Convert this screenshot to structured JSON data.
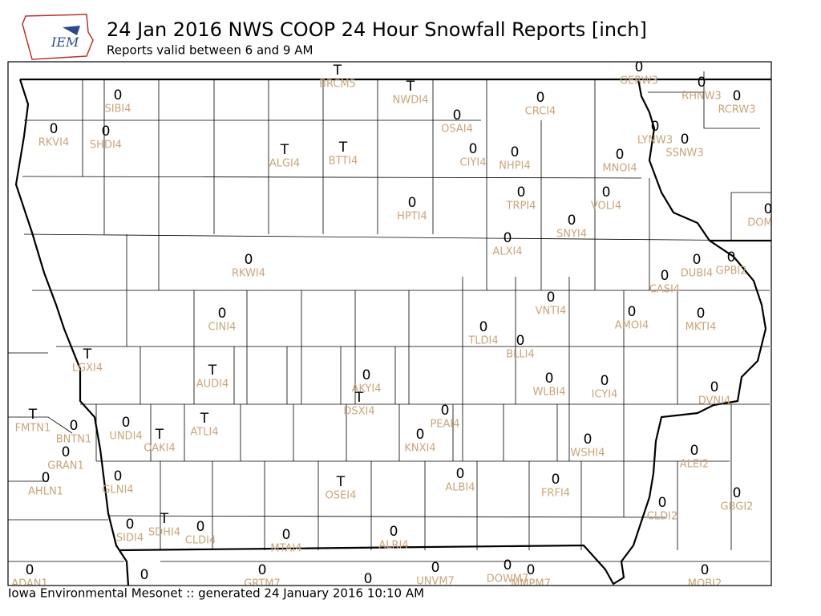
{
  "header": {
    "logo": "IEM",
    "title": "24 Jan 2016 NWS COOP 24 Hour Snowfall Reports [inch]",
    "subtitle": "Reports valid between 6 and 9 AM"
  },
  "footer": "Iowa Environmental Mesonet :: generated 24 January 2016 10:10 AM",
  "stations": [
    {
      "value": "0",
      "label": "SIBI4"
    },
    {
      "value": "0",
      "label": "RKVI4"
    },
    {
      "value": "0",
      "label": "SHDI4"
    },
    {
      "value": "T",
      "label": "BRCM5"
    },
    {
      "value": "T",
      "label": "NWDI4"
    },
    {
      "value": "0",
      "label": "OSAI4"
    },
    {
      "value": "0",
      "label": "CRCI4"
    },
    {
      "value": "0",
      "label": "GERW3"
    },
    {
      "value": "0",
      "label": "RHNW3"
    },
    {
      "value": "0",
      "label": "RCRW3"
    },
    {
      "value": "0",
      "label": "LYNW3"
    },
    {
      "value": "0",
      "label": "SSNW3"
    },
    {
      "value": "T",
      "label": "ALGI4"
    },
    {
      "value": "T",
      "label": "BTTI4"
    },
    {
      "value": "0",
      "label": "CIYI4"
    },
    {
      "value": "0",
      "label": "NHPI4"
    },
    {
      "value": "0",
      "label": "MNOI4"
    },
    {
      "value": "0",
      "label": "HPTI4"
    },
    {
      "value": "0",
      "label": "TRPI4"
    },
    {
      "value": "0",
      "label": "VOLI4"
    },
    {
      "value": "0",
      "label": "SNYI4"
    },
    {
      "value": "0",
      "label": "DOM"
    },
    {
      "value": "0",
      "label": "ALXI4"
    },
    {
      "value": "0",
      "label": "RKWI4"
    },
    {
      "value": "0",
      "label": "DUBI4"
    },
    {
      "value": "0",
      "label": "GPBI2"
    },
    {
      "value": "0",
      "label": "CASI4"
    },
    {
      "value": "0",
      "label": "VNTI4"
    },
    {
      "value": "0",
      "label": "CINI4"
    },
    {
      "value": "0",
      "label": "AMOI4"
    },
    {
      "value": "0",
      "label": "MKTI4"
    },
    {
      "value": "0",
      "label": "TLDI4"
    },
    {
      "value": "0",
      "label": "BLLI4"
    },
    {
      "value": "T",
      "label": "LGXI4"
    },
    {
      "value": "T",
      "label": "AUDI4"
    },
    {
      "value": "0",
      "label": "AKYI4"
    },
    {
      "value": "0",
      "label": "WLBI4"
    },
    {
      "value": "0",
      "label": "ICYI4"
    },
    {
      "value": "0",
      "label": "DVNI4"
    },
    {
      "value": "T",
      "label": "DSXI4"
    },
    {
      "value": "T",
      "label": "FMTN1"
    },
    {
      "value": "0",
      "label": "BNTN1"
    },
    {
      "value": "0",
      "label": "UNDI4"
    },
    {
      "value": "T",
      "label": "OAKI4"
    },
    {
      "value": "T",
      "label": "ATLI4"
    },
    {
      "value": "0",
      "label": "PEAI4"
    },
    {
      "value": "0",
      "label": "KNXI4"
    },
    {
      "value": "0",
      "label": "WSHI4"
    },
    {
      "value": "0",
      "label": "GRAN1"
    },
    {
      "value": "0",
      "label": "ALEI2"
    },
    {
      "value": "0",
      "label": "AHLN1"
    },
    {
      "value": "0",
      "label": "GLNI4"
    },
    {
      "value": "T",
      "label": "OSEI4"
    },
    {
      "value": "0",
      "label": "ALBI4"
    },
    {
      "value": "0",
      "label": "FRFI4"
    },
    {
      "value": "0",
      "label": "GBGI2"
    },
    {
      "value": "0",
      "label": "CLDI2"
    },
    {
      "value": "0",
      "label": "SIDI4"
    },
    {
      "value": "T",
      "label": "SDHI4"
    },
    {
      "value": "0",
      "label": "CLDI4"
    },
    {
      "value": "0",
      "label": "MTAI4"
    },
    {
      "value": "0",
      "label": "ALRI4"
    },
    {
      "value": "0",
      "label": "ADAN1"
    },
    {
      "value": "0"
    },
    {
      "value": "0",
      "label": "GRTM7"
    },
    {
      "value": "0"
    },
    {
      "value": "0",
      "label": "UNVM7"
    },
    {
      "value": "0",
      "label": "DOWM7"
    },
    {
      "value": "0",
      "label": "MMPM7"
    },
    {
      "value": "0",
      "label": "MOBI2"
    }
  ]
}
